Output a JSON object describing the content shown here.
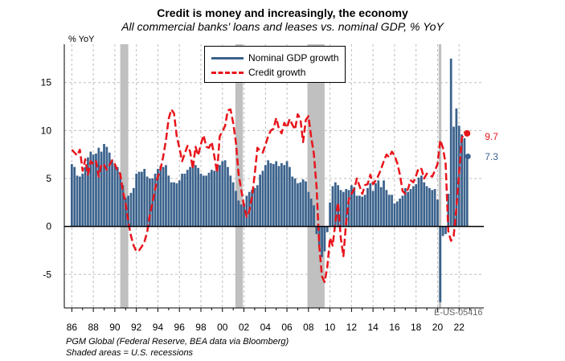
{
  "title": "Credit is money and increasingly, the economy",
  "subtitle": "All commercial banks' loans and leases vs. nominal GDP, % YoY",
  "source_lines": [
    "PGM Global (Federal Reserve, BEA data via Bloomberg)",
    "Shaded areas = U.S. recessions"
  ],
  "chart_code": "E-US-05416",
  "colors": {
    "gdp": "#3b628c",
    "credit": "#e8141b",
    "recession": "#c0c0c0"
  },
  "chart_data": {
    "type": "bar",
    "title": "Credit is money and increasingly, the economy",
    "subtitle": "All commercial banks' loans and leases vs. nominal GDP, % YoY",
    "ylabel": "% YoY",
    "xlabel": "",
    "ylim": [
      -8.5,
      19
    ],
    "xlim": [
      1985.3,
      2024.3
    ],
    "grid": true,
    "legend_position": "top-center",
    "x_tick_labels": [
      "86",
      "88",
      "90",
      "92",
      "94",
      "96",
      "98",
      "00",
      "02",
      "04",
      "06",
      "08",
      "10",
      "12",
      "14",
      "16",
      "18",
      "20",
      "22"
    ],
    "y_ticks": [
      -5,
      0,
      5,
      10,
      15
    ],
    "recessions": [
      [
        1990.5,
        1991.25
      ],
      [
        2001.2,
        2001.9
      ],
      [
        2007.9,
        2009.5
      ],
      [
        2020.1,
        2020.35
      ]
    ],
    "series": [
      {
        "name": "Nominal GDP growth",
        "type": "bar",
        "points": [
          [
            1986.0,
            6.5
          ],
          [
            1986.25,
            6.2
          ],
          [
            1986.5,
            5.3
          ],
          [
            1986.75,
            5.2
          ],
          [
            1987.0,
            5.5
          ],
          [
            1987.25,
            6.2
          ],
          [
            1987.5,
            7.2
          ],
          [
            1987.75,
            7.8
          ],
          [
            1988.0,
            7.5
          ],
          [
            1988.25,
            7.6
          ],
          [
            1988.5,
            8.2
          ],
          [
            1988.75,
            7.8
          ],
          [
            1989.0,
            8.6
          ],
          [
            1989.25,
            8.3
          ],
          [
            1989.5,
            7.7
          ],
          [
            1989.75,
            6.9
          ],
          [
            1990.0,
            6.5
          ],
          [
            1990.25,
            6.2
          ],
          [
            1990.5,
            5.5
          ],
          [
            1990.75,
            4.3
          ],
          [
            1991.0,
            3.0
          ],
          [
            1991.25,
            3.2
          ],
          [
            1991.5,
            3.5
          ],
          [
            1991.75,
            4.0
          ],
          [
            1992.0,
            5.5
          ],
          [
            1992.25,
            5.7
          ],
          [
            1992.5,
            5.7
          ],
          [
            1992.75,
            6.0
          ],
          [
            1993.0,
            5.2
          ],
          [
            1993.25,
            5.0
          ],
          [
            1993.5,
            5.0
          ],
          [
            1993.75,
            5.5
          ],
          [
            1994.0,
            6.0
          ],
          [
            1994.25,
            6.3
          ],
          [
            1994.5,
            6.2
          ],
          [
            1994.75,
            6.4
          ],
          [
            1995.0,
            5.3
          ],
          [
            1995.25,
            4.6
          ],
          [
            1995.5,
            4.6
          ],
          [
            1995.75,
            4.5
          ],
          [
            1996.0,
            4.8
          ],
          [
            1996.25,
            5.5
          ],
          [
            1996.5,
            5.5
          ],
          [
            1996.75,
            5.9
          ],
          [
            1997.0,
            6.2
          ],
          [
            1997.25,
            6.2
          ],
          [
            1997.5,
            6.4
          ],
          [
            1997.75,
            6.1
          ],
          [
            1998.0,
            5.5
          ],
          [
            1998.25,
            5.3
          ],
          [
            1998.5,
            5.3
          ],
          [
            1998.75,
            5.6
          ],
          [
            1999.0,
            5.9
          ],
          [
            1999.25,
            5.8
          ],
          [
            1999.5,
            6.1
          ],
          [
            1999.75,
            6.4
          ],
          [
            2000.0,
            6.8
          ],
          [
            2000.25,
            6.9
          ],
          [
            2000.5,
            6.2
          ],
          [
            2000.75,
            5.3
          ],
          [
            2001.0,
            4.6
          ],
          [
            2001.25,
            3.7
          ],
          [
            2001.5,
            2.7
          ],
          [
            2001.75,
            2.3
          ],
          [
            2002.0,
            2.4
          ],
          [
            2002.25,
            3.2
          ],
          [
            2002.5,
            3.6
          ],
          [
            2002.75,
            3.8
          ],
          [
            2003.0,
            4.0
          ],
          [
            2003.25,
            4.3
          ],
          [
            2003.5,
            5.4
          ],
          [
            2003.75,
            5.8
          ],
          [
            2004.0,
            6.4
          ],
          [
            2004.25,
            6.9
          ],
          [
            2004.5,
            6.6
          ],
          [
            2004.75,
            6.5
          ],
          [
            2005.0,
            6.8
          ],
          [
            2005.25,
            6.3
          ],
          [
            2005.5,
            6.6
          ],
          [
            2005.75,
            6.4
          ],
          [
            2006.0,
            6.8
          ],
          [
            2006.25,
            6.2
          ],
          [
            2006.5,
            5.2
          ],
          [
            2006.75,
            5.0
          ],
          [
            2007.0,
            4.5
          ],
          [
            2007.25,
            4.6
          ],
          [
            2007.5,
            4.9
          ],
          [
            2007.75,
            4.7
          ],
          [
            2008.0,
            3.6
          ],
          [
            2008.25,
            2.9
          ],
          [
            2008.5,
            2.2
          ],
          [
            2008.75,
            -0.8
          ],
          [
            2009.0,
            -2.0
          ],
          [
            2009.25,
            -3.2
          ],
          [
            2009.5,
            -2.6
          ],
          [
            2009.75,
            -0.6
          ],
          [
            2010.0,
            2.5
          ],
          [
            2010.25,
            4.2
          ],
          [
            2010.5,
            4.6
          ],
          [
            2010.75,
            4.3
          ],
          [
            2011.0,
            3.8
          ],
          [
            2011.25,
            3.6
          ],
          [
            2011.5,
            3.9
          ],
          [
            2011.75,
            3.8
          ],
          [
            2012.0,
            4.3
          ],
          [
            2012.25,
            4.1
          ],
          [
            2012.5,
            3.2
          ],
          [
            2012.75,
            3.2
          ],
          [
            2013.0,
            3.1
          ],
          [
            2013.25,
            3.3
          ],
          [
            2013.5,
            4.0
          ],
          [
            2013.75,
            4.5
          ],
          [
            2014.0,
            3.7
          ],
          [
            2014.25,
            4.5
          ],
          [
            2014.5,
            4.8
          ],
          [
            2014.75,
            4.1
          ],
          [
            2015.0,
            4.8
          ],
          [
            2015.25,
            3.8
          ],
          [
            2015.5,
            3.3
          ],
          [
            2015.75,
            3.3
          ],
          [
            2016.0,
            2.4
          ],
          [
            2016.25,
            2.6
          ],
          [
            2016.5,
            2.9
          ],
          [
            2016.75,
            3.2
          ],
          [
            2017.0,
            4.0
          ],
          [
            2017.25,
            3.6
          ],
          [
            2017.5,
            3.9
          ],
          [
            2017.75,
            4.2
          ],
          [
            2018.0,
            4.4
          ],
          [
            2018.25,
            5.1
          ],
          [
            2018.5,
            5.3
          ],
          [
            2018.75,
            4.6
          ],
          [
            2019.0,
            4.2
          ],
          [
            2019.25,
            4.0
          ],
          [
            2019.5,
            3.8
          ],
          [
            2019.75,
            3.9
          ],
          [
            2020.0,
            2.8
          ],
          [
            2020.25,
            -7.9
          ],
          [
            2020.5,
            -1.0
          ],
          [
            2020.75,
            -0.8
          ],
          [
            2021.0,
            3.4
          ],
          [
            2021.25,
            17.5
          ],
          [
            2021.5,
            10.4
          ],
          [
            2021.75,
            12.3
          ],
          [
            2022.0,
            10.5
          ],
          [
            2022.25,
            9.6
          ],
          [
            2022.5,
            9.2
          ],
          [
            2022.75,
            7.3
          ]
        ]
      },
      {
        "name": "Credit growth",
        "type": "line",
        "last_value_label": "9.7",
        "points": [
          [
            1986.0,
            8.0
          ],
          [
            1986.25,
            7.7
          ],
          [
            1986.5,
            7.4
          ],
          [
            1986.75,
            8.0
          ],
          [
            1987.0,
            5.8
          ],
          [
            1987.25,
            7.0
          ],
          [
            1987.5,
            5.4
          ],
          [
            1987.75,
            6.8
          ],
          [
            1988.0,
            6.5
          ],
          [
            1988.25,
            6.8
          ],
          [
            1988.5,
            5.2
          ],
          [
            1988.75,
            6.5
          ],
          [
            1989.0,
            6.4
          ],
          [
            1989.25,
            5.9
          ],
          [
            1989.5,
            6.4
          ],
          [
            1989.75,
            6.9
          ],
          [
            1990.0,
            6.5
          ],
          [
            1990.25,
            5.8
          ],
          [
            1990.5,
            5.5
          ],
          [
            1990.75,
            3.7
          ],
          [
            1991.0,
            2.4
          ],
          [
            1991.25,
            0.5
          ],
          [
            1991.5,
            -1.0
          ],
          [
            1991.75,
            -2.0
          ],
          [
            1992.0,
            -2.6
          ],
          [
            1992.25,
            -2.5
          ],
          [
            1992.5,
            -2.1
          ],
          [
            1992.75,
            -1.6
          ],
          [
            1993.0,
            -0.6
          ],
          [
            1993.25,
            1.2
          ],
          [
            1993.5,
            2.5
          ],
          [
            1993.75,
            3.9
          ],
          [
            1994.0,
            5.2
          ],
          [
            1994.25,
            6.0
          ],
          [
            1994.5,
            7.3
          ],
          [
            1994.75,
            9.0
          ],
          [
            1995.0,
            11.2
          ],
          [
            1995.25,
            12.2
          ],
          [
            1995.5,
            11.8
          ],
          [
            1995.75,
            9.4
          ],
          [
            1996.0,
            8.2
          ],
          [
            1996.25,
            6.8
          ],
          [
            1996.5,
            7.6
          ],
          [
            1996.75,
            8.4
          ],
          [
            1997.0,
            7.8
          ],
          [
            1997.25,
            6.0
          ],
          [
            1997.5,
            8.3
          ],
          [
            1997.75,
            7.4
          ],
          [
            1998.0,
            8.6
          ],
          [
            1998.25,
            9.5
          ],
          [
            1998.5,
            8.3
          ],
          [
            1998.75,
            8.2
          ],
          [
            1999.0,
            8.8
          ],
          [
            1999.25,
            7.3
          ],
          [
            1999.5,
            5.6
          ],
          [
            1999.75,
            9.4
          ],
          [
            2000.0,
            9.9
          ],
          [
            2000.25,
            10.5
          ],
          [
            2000.5,
            12.1
          ],
          [
            2000.75,
            12.2
          ],
          [
            2001.0,
            10.8
          ],
          [
            2001.25,
            8.8
          ],
          [
            2001.5,
            5.5
          ],
          [
            2001.75,
            3.8
          ],
          [
            2002.0,
            2.2
          ],
          [
            2002.25,
            1.0
          ],
          [
            2002.5,
            1.6
          ],
          [
            2002.75,
            3.1
          ],
          [
            2003.0,
            5.4
          ],
          [
            2003.25,
            8.2
          ],
          [
            2003.5,
            7.9
          ],
          [
            2003.75,
            7.7
          ],
          [
            2004.0,
            8.5
          ],
          [
            2004.25,
            9.4
          ],
          [
            2004.5,
            10.0
          ],
          [
            2004.75,
            10.2
          ],
          [
            2005.0,
            11.3
          ],
          [
            2005.25,
            10.2
          ],
          [
            2005.5,
            9.7
          ],
          [
            2005.75,
            10.8
          ],
          [
            2006.0,
            10.3
          ],
          [
            2006.25,
            11.2
          ],
          [
            2006.5,
            10.6
          ],
          [
            2006.75,
            10.1
          ],
          [
            2007.0,
            11.7
          ],
          [
            2007.25,
            11.2
          ],
          [
            2007.5,
            8.8
          ],
          [
            2007.75,
            11.1
          ],
          [
            2008.0,
            11.5
          ],
          [
            2008.25,
            9.3
          ],
          [
            2008.5,
            7.6
          ],
          [
            2008.75,
            4.1
          ],
          [
            2009.0,
            -2.0
          ],
          [
            2009.25,
            -5.2
          ],
          [
            2009.5,
            -5.8
          ],
          [
            2009.75,
            -4.2
          ],
          [
            2010.0,
            -1.2
          ],
          [
            2010.25,
            -2.0
          ],
          [
            2010.5,
            0.4
          ],
          [
            2010.75,
            2.5
          ],
          [
            2011.0,
            -1.2
          ],
          [
            2011.25,
            -3.1
          ],
          [
            2011.5,
            0.5
          ],
          [
            2011.75,
            2.8
          ],
          [
            2012.0,
            3.4
          ],
          [
            2012.25,
            3.9
          ],
          [
            2012.5,
            5.0
          ],
          [
            2012.75,
            4.2
          ],
          [
            2013.0,
            3.4
          ],
          [
            2013.25,
            4.3
          ],
          [
            2013.5,
            4.4
          ],
          [
            2013.75,
            5.4
          ],
          [
            2014.0,
            4.4
          ],
          [
            2014.25,
            4.8
          ],
          [
            2014.5,
            5.3
          ],
          [
            2014.75,
            6.0
          ],
          [
            2015.0,
            6.8
          ],
          [
            2015.25,
            7.5
          ],
          [
            2015.5,
            7.2
          ],
          [
            2015.75,
            7.8
          ],
          [
            2016.0,
            7.4
          ],
          [
            2016.25,
            6.6
          ],
          [
            2016.5,
            5.4
          ],
          [
            2016.75,
            3.7
          ],
          [
            2017.0,
            3.4
          ],
          [
            2017.25,
            3.9
          ],
          [
            2017.5,
            4.8
          ],
          [
            2017.75,
            4.6
          ],
          [
            2018.0,
            5.3
          ],
          [
            2018.25,
            6.1
          ],
          [
            2018.5,
            6.0
          ],
          [
            2018.75,
            5.0
          ],
          [
            2019.0,
            5.5
          ],
          [
            2019.25,
            5.3
          ],
          [
            2019.5,
            5.2
          ],
          [
            2019.75,
            5.8
          ],
          [
            2020.0,
            6.5
          ],
          [
            2020.25,
            9.0
          ],
          [
            2020.5,
            8.2
          ],
          [
            2020.75,
            6.5
          ],
          [
            2021.0,
            -0.5
          ],
          [
            2021.25,
            -1.5
          ],
          [
            2021.5,
            -1.0
          ],
          [
            2021.75,
            2.0
          ],
          [
            2022.0,
            5.5
          ],
          [
            2022.25,
            9.2
          ],
          [
            2022.5,
            9.8
          ],
          [
            2022.75,
            9.7
          ]
        ]
      }
    ],
    "end_labels": {
      "gdp": "7.3",
      "credit": "9.7"
    }
  }
}
